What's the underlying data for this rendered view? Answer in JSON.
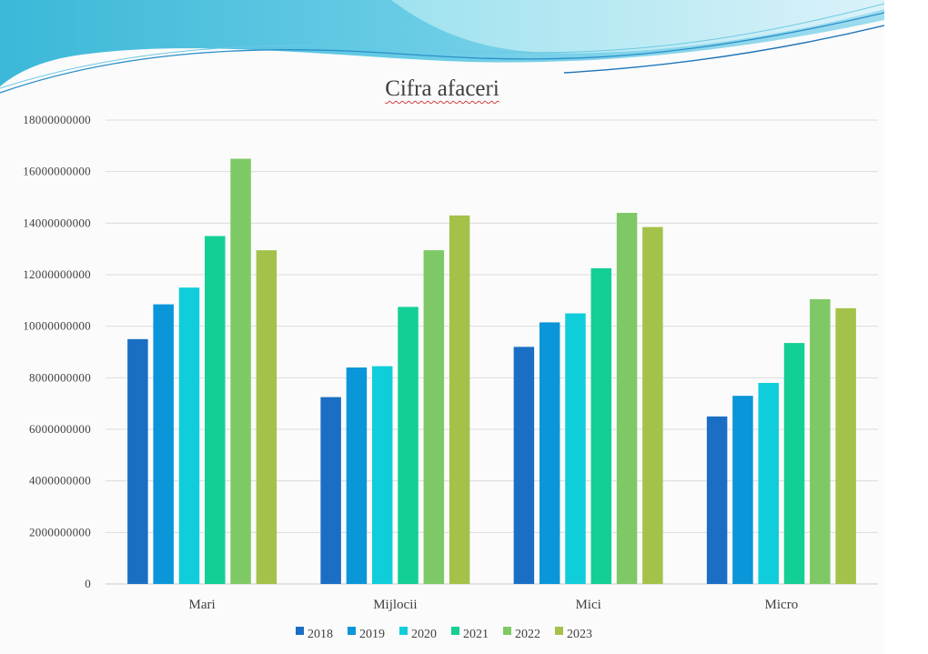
{
  "chart_data": {
    "type": "bar",
    "title": "Cifra afaceri",
    "xlabel": "",
    "ylabel": "",
    "categories": [
      "Mari",
      "Mijlocii",
      "Mici",
      "Micro"
    ],
    "series": [
      {
        "name": "2018",
        "color": "#1a6fc4",
        "values": [
          9500000000,
          7250000000,
          9200000000,
          6500000000
        ]
      },
      {
        "name": "2019",
        "color": "#0a96d8",
        "values": [
          10850000000,
          8400000000,
          10150000000,
          7300000000
        ]
      },
      {
        "name": "2020",
        "color": "#10cddb",
        "values": [
          11500000000,
          8450000000,
          10500000000,
          7800000000
        ]
      },
      {
        "name": "2021",
        "color": "#12cf96",
        "values": [
          13500000000,
          10750000000,
          12250000000,
          9350000000
        ]
      },
      {
        "name": "2022",
        "color": "#7ec965",
        "values": [
          16500000000,
          12950000000,
          14400000000,
          11050000000
        ]
      },
      {
        "name": "2023",
        "color": "#a4c24a",
        "values": [
          12950000000,
          14300000000,
          13850000000,
          10700000000
        ]
      }
    ],
    "ylim": [
      0,
      18000000000
    ],
    "yticks": [
      "0",
      "2000000000",
      "4000000000",
      "6000000000",
      "8000000000",
      "10000000000",
      "12000000000",
      "14000000000",
      "16000000000",
      "18000000000"
    ],
    "grid": true,
    "legend_position": "bottom"
  }
}
